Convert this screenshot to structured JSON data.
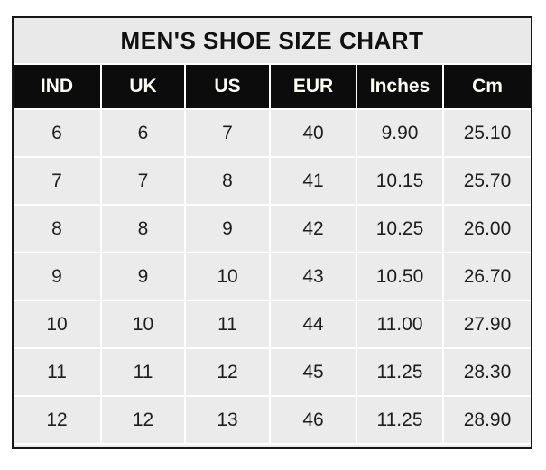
{
  "chart_data": {
    "type": "table",
    "title": "MEN'S SHOE SIZE CHART",
    "columns": [
      "IND",
      "UK",
      "US",
      "EUR",
      "Inches",
      "Cm"
    ],
    "rows": [
      [
        "6",
        "6",
        "7",
        "40",
        "9.90",
        "25.10"
      ],
      [
        "7",
        "7",
        "8",
        "41",
        "10.15",
        "25.70"
      ],
      [
        "8",
        "8",
        "9",
        "42",
        "10.25",
        "26.00"
      ],
      [
        "9",
        "9",
        "10",
        "43",
        "10.50",
        "26.70"
      ],
      [
        "10",
        "10",
        "11",
        "44",
        "11.00",
        "27.90"
      ],
      [
        "11",
        "11",
        "12",
        "45",
        "11.25",
        "28.30"
      ],
      [
        "12",
        "12",
        "13",
        "46",
        "11.25",
        "28.90"
      ]
    ],
    "layout": {
      "legend": "none",
      "grid_lines": "white lines between cells",
      "header_style": "black background, white bold text",
      "title_position": "top merged row"
    },
    "colors": {
      "outer_border": "#161616",
      "title_bg": "#e9e9e9",
      "header_bg": "#0c0c0c",
      "header_text": "#fdfdf6",
      "cell_bg": "#ebebeb",
      "cell_text": "#1e1e1e",
      "grid_line": "#ffffff",
      "page_bg": "#ffffff"
    }
  }
}
